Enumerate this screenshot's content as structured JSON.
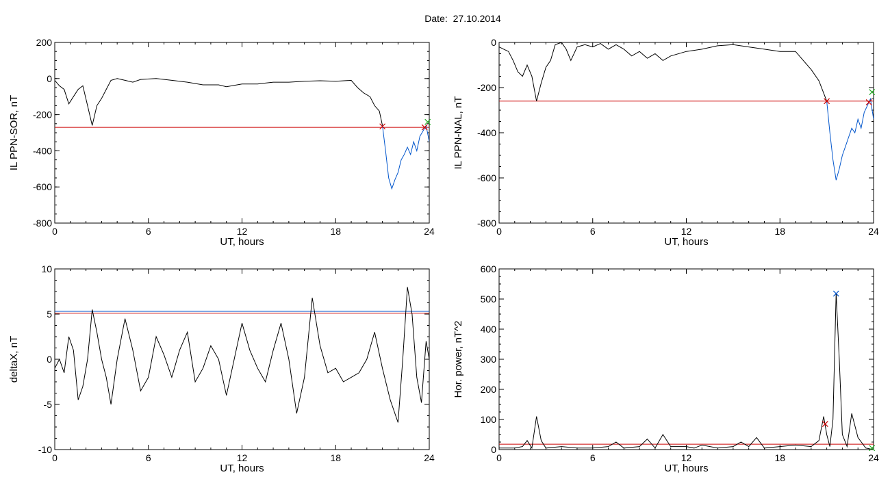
{
  "header": {
    "date_label": "Date:",
    "date_value": "27.10.2014"
  },
  "chart_data": [
    {
      "id": "p1",
      "type": "line",
      "ylabel": "IL PPN-SOR, nT",
      "xlabel": "UT, hours",
      "xlim": [
        0,
        24
      ],
      "ylim": [
        -800,
        200
      ],
      "xticks": [
        0,
        6,
        12,
        18,
        24
      ],
      "yticks": [
        -800,
        -600,
        -400,
        -200,
        0,
        200
      ],
      "threshold": {
        "value": -270,
        "color": "#cc0000"
      },
      "series": [
        {
          "color": "#000000",
          "points": [
            [
              0,
              -10
            ],
            [
              0.3,
              -40
            ],
            [
              0.6,
              -60
            ],
            [
              0.9,
              -140
            ],
            [
              1.2,
              -100
            ],
            [
              1.5,
              -60
            ],
            [
              1.8,
              -40
            ],
            [
              2.1,
              -150
            ],
            [
              2.4,
              -260
            ],
            [
              2.7,
              -150
            ],
            [
              3.0,
              -110
            ],
            [
              3.3,
              -60
            ],
            [
              3.6,
              -10
            ],
            [
              4.0,
              0
            ],
            [
              4.5,
              -10
            ],
            [
              5.0,
              -20
            ],
            [
              5.5,
              -5
            ],
            [
              6.5,
              0
            ],
            [
              7.5,
              -10
            ],
            [
              8.5,
              -20
            ],
            [
              9.5,
              -35
            ],
            [
              10.5,
              -35
            ],
            [
              11.0,
              -45
            ],
            [
              12.0,
              -30
            ],
            [
              13.0,
              -30
            ],
            [
              14.0,
              -20
            ],
            [
              15.0,
              -20
            ],
            [
              16.0,
              -15
            ],
            [
              17.0,
              -12
            ],
            [
              18.0,
              -15
            ],
            [
              19.0,
              -10
            ],
            [
              19.4,
              -50
            ],
            [
              19.8,
              -80
            ],
            [
              20.2,
              -100
            ],
            [
              20.5,
              -150
            ],
            [
              20.8,
              -180
            ],
            [
              21.0,
              -260
            ]
          ]
        },
        {
          "color": "#0055cc",
          "points": [
            [
              21.0,
              -260
            ],
            [
              21.2,
              -400
            ],
            [
              21.4,
              -550
            ],
            [
              21.6,
              -610
            ],
            [
              21.8,
              -560
            ],
            [
              22.0,
              -520
            ],
            [
              22.2,
              -450
            ],
            [
              22.4,
              -420
            ],
            [
              22.6,
              -380
            ],
            [
              22.8,
              -420
            ],
            [
              23.0,
              -350
            ],
            [
              23.2,
              -400
            ],
            [
              23.4,
              -320
            ],
            [
              23.6,
              -290
            ],
            [
              23.8,
              -260
            ],
            [
              24.0,
              -350
            ]
          ]
        }
      ],
      "markers": [
        {
          "x": 21.0,
          "y": -265,
          "color": "#cc0000"
        },
        {
          "x": 23.7,
          "y": -270,
          "color": "#cc0000"
        },
        {
          "x": 23.9,
          "y": -240,
          "color": "#22aa22"
        }
      ]
    },
    {
      "id": "p2",
      "type": "line",
      "ylabel": "IL PPN-NAL, nT",
      "xlabel": "UT, hours",
      "xlim": [
        0,
        24
      ],
      "ylim": [
        -800,
        0
      ],
      "xticks": [
        0,
        6,
        12,
        18,
        24
      ],
      "yticks": [
        -800,
        -600,
        -400,
        -200,
        0
      ],
      "threshold": {
        "value": -260,
        "color": "#cc0000"
      },
      "series": [
        {
          "color": "#000000",
          "points": [
            [
              0,
              -20
            ],
            [
              0.3,
              -30
            ],
            [
              0.6,
              -40
            ],
            [
              0.9,
              -80
            ],
            [
              1.2,
              -130
            ],
            [
              1.5,
              -150
            ],
            [
              1.8,
              -100
            ],
            [
              2.1,
              -150
            ],
            [
              2.4,
              -260
            ],
            [
              2.7,
              -180
            ],
            [
              3.0,
              -110
            ],
            [
              3.3,
              -80
            ],
            [
              3.6,
              -10
            ],
            [
              4.0,
              0
            ],
            [
              4.3,
              -30
            ],
            [
              4.6,
              -80
            ],
            [
              5.0,
              -20
            ],
            [
              5.5,
              -10
            ],
            [
              6.0,
              -20
            ],
            [
              6.5,
              -5
            ],
            [
              7.0,
              -30
            ],
            [
              7.5,
              -10
            ],
            [
              8.0,
              -30
            ],
            [
              8.5,
              -60
            ],
            [
              9.0,
              -40
            ],
            [
              9.5,
              -70
            ],
            [
              10.0,
              -50
            ],
            [
              10.5,
              -80
            ],
            [
              11.0,
              -60
            ],
            [
              12.0,
              -40
            ],
            [
              13.0,
              -30
            ],
            [
              14.0,
              -15
            ],
            [
              15.0,
              -10
            ],
            [
              16.0,
              -20
            ],
            [
              17.0,
              -30
            ],
            [
              18.0,
              -40
            ],
            [
              19.0,
              -40
            ],
            [
              19.5,
              -80
            ],
            [
              20.0,
              -120
            ],
            [
              20.5,
              -170
            ],
            [
              21.0,
              -260
            ]
          ]
        },
        {
          "color": "#0055cc",
          "points": [
            [
              21.0,
              -260
            ],
            [
              21.2,
              -400
            ],
            [
              21.4,
              -520
            ],
            [
              21.6,
              -610
            ],
            [
              21.8,
              -560
            ],
            [
              22.0,
              -500
            ],
            [
              22.2,
              -460
            ],
            [
              22.4,
              -420
            ],
            [
              22.6,
              -380
            ],
            [
              22.8,
              -400
            ],
            [
              23.0,
              -340
            ],
            [
              23.2,
              -380
            ],
            [
              23.4,
              -310
            ],
            [
              23.6,
              -280
            ],
            [
              23.8,
              -250
            ],
            [
              24.0,
              -340
            ]
          ]
        }
      ],
      "markers": [
        {
          "x": 21.0,
          "y": -260,
          "color": "#cc0000"
        },
        {
          "x": 23.7,
          "y": -265,
          "color": "#cc0000"
        },
        {
          "x": 23.9,
          "y": -220,
          "color": "#22aa22"
        }
      ]
    },
    {
      "id": "p3",
      "type": "line",
      "ylabel": "deltaX, nT",
      "xlabel": "UT, hours",
      "xlim": [
        0,
        24
      ],
      "ylim": [
        -10,
        10
      ],
      "xticks": [
        0,
        6,
        12,
        18,
        24
      ],
      "yticks": [
        -10,
        -5,
        0,
        5,
        10
      ],
      "threshold": {
        "value": 5.1,
        "color": "#cc0000"
      },
      "extra_lines": [
        {
          "value": 5.3,
          "color": "#0055cc"
        }
      ],
      "series": [
        {
          "color": "#000000",
          "points": [
            [
              0,
              -1
            ],
            [
              0.3,
              0
            ],
            [
              0.6,
              -1.5
            ],
            [
              0.9,
              2.5
            ],
            [
              1.2,
              1
            ],
            [
              1.5,
              -4.5
            ],
            [
              1.8,
              -3
            ],
            [
              2.1,
              0
            ],
            [
              2.4,
              5.5
            ],
            [
              2.7,
              3
            ],
            [
              3.0,
              0
            ],
            [
              3.3,
              -2
            ],
            [
              3.6,
              -5
            ],
            [
              4.0,
              0
            ],
            [
              4.5,
              4.5
            ],
            [
              5.0,
              1
            ],
            [
              5.5,
              -3.5
            ],
            [
              6.0,
              -2
            ],
            [
              6.5,
              2.5
            ],
            [
              7.0,
              0.5
            ],
            [
              7.5,
              -2
            ],
            [
              8.0,
              1
            ],
            [
              8.5,
              3
            ],
            [
              9.0,
              -2.5
            ],
            [
              9.5,
              -1
            ],
            [
              10.0,
              1.5
            ],
            [
              10.5,
              0
            ],
            [
              11.0,
              -4
            ],
            [
              11.5,
              0
            ],
            [
              12.0,
              4
            ],
            [
              12.5,
              1
            ],
            [
              13.0,
              -1
            ],
            [
              13.5,
              -2.5
            ],
            [
              14.0,
              1
            ],
            [
              14.5,
              4
            ],
            [
              15.0,
              0
            ],
            [
              15.5,
              -6
            ],
            [
              16.0,
              -2
            ],
            [
              16.5,
              6.8
            ],
            [
              17.0,
              1.5
            ],
            [
              17.5,
              -1.5
            ],
            [
              18.0,
              -1
            ],
            [
              18.5,
              -2.5
            ],
            [
              19.0,
              -2
            ],
            [
              19.5,
              -1.5
            ],
            [
              20.0,
              0
            ],
            [
              20.5,
              3
            ],
            [
              21.0,
              -1
            ],
            [
              21.5,
              -4.5
            ],
            [
              22.0,
              -7
            ],
            [
              22.3,
              0
            ],
            [
              22.6,
              8
            ],
            [
              22.9,
              5
            ],
            [
              23.2,
              -2
            ],
            [
              23.5,
              -4.8
            ],
            [
              23.8,
              2
            ],
            [
              24.0,
              0
            ]
          ]
        }
      ],
      "markers": []
    },
    {
      "id": "p4",
      "type": "line",
      "ylabel": "Hor. power, nT^2",
      "xlabel": "UT, hours",
      "xlim": [
        0,
        24
      ],
      "ylim": [
        0,
        600
      ],
      "xticks": [
        0,
        6,
        12,
        18,
        24
      ],
      "yticks": [
        0,
        100,
        200,
        300,
        400,
        500,
        600
      ],
      "threshold": {
        "value": 18,
        "color": "#cc0000"
      },
      "series": [
        {
          "color": "#000000",
          "points": [
            [
              0,
              5
            ],
            [
              1.0,
              5
            ],
            [
              1.5,
              10
            ],
            [
              1.8,
              30
            ],
            [
              2.1,
              5
            ],
            [
              2.4,
              110
            ],
            [
              2.7,
              30
            ],
            [
              3.0,
              5
            ],
            [
              4.0,
              10
            ],
            [
              5.0,
              5
            ],
            [
              6.0,
              5
            ],
            [
              7.0,
              10
            ],
            [
              7.5,
              25
            ],
            [
              8.0,
              5
            ],
            [
              9.0,
              10
            ],
            [
              9.5,
              35
            ],
            [
              10.0,
              5
            ],
            [
              10.5,
              50
            ],
            [
              11.0,
              10
            ],
            [
              12.0,
              10
            ],
            [
              12.5,
              5
            ],
            [
              13.0,
              15
            ],
            [
              14.0,
              5
            ],
            [
              15.0,
              10
            ],
            [
              15.5,
              25
            ],
            [
              16.0,
              10
            ],
            [
              16.5,
              40
            ],
            [
              17.0,
              5
            ],
            [
              18.0,
              10
            ],
            [
              19.0,
              15
            ],
            [
              20.0,
              10
            ],
            [
              20.5,
              30
            ],
            [
              20.8,
              110
            ],
            [
              21.0,
              50
            ],
            [
              21.2,
              10
            ],
            [
              21.4,
              100
            ],
            [
              21.6,
              520
            ],
            [
              21.8,
              300
            ],
            [
              22.0,
              50
            ],
            [
              22.3,
              10
            ],
            [
              22.6,
              120
            ],
            [
              23.0,
              40
            ],
            [
              23.5,
              5
            ],
            [
              24.0,
              0
            ]
          ]
        }
      ],
      "markers": [
        {
          "x": 20.9,
          "y": 85,
          "color": "#cc0000"
        },
        {
          "x": 21.6,
          "y": 518,
          "color": "#0055cc"
        },
        {
          "x": 23.9,
          "y": 5,
          "color": "#22aa22"
        }
      ]
    }
  ]
}
